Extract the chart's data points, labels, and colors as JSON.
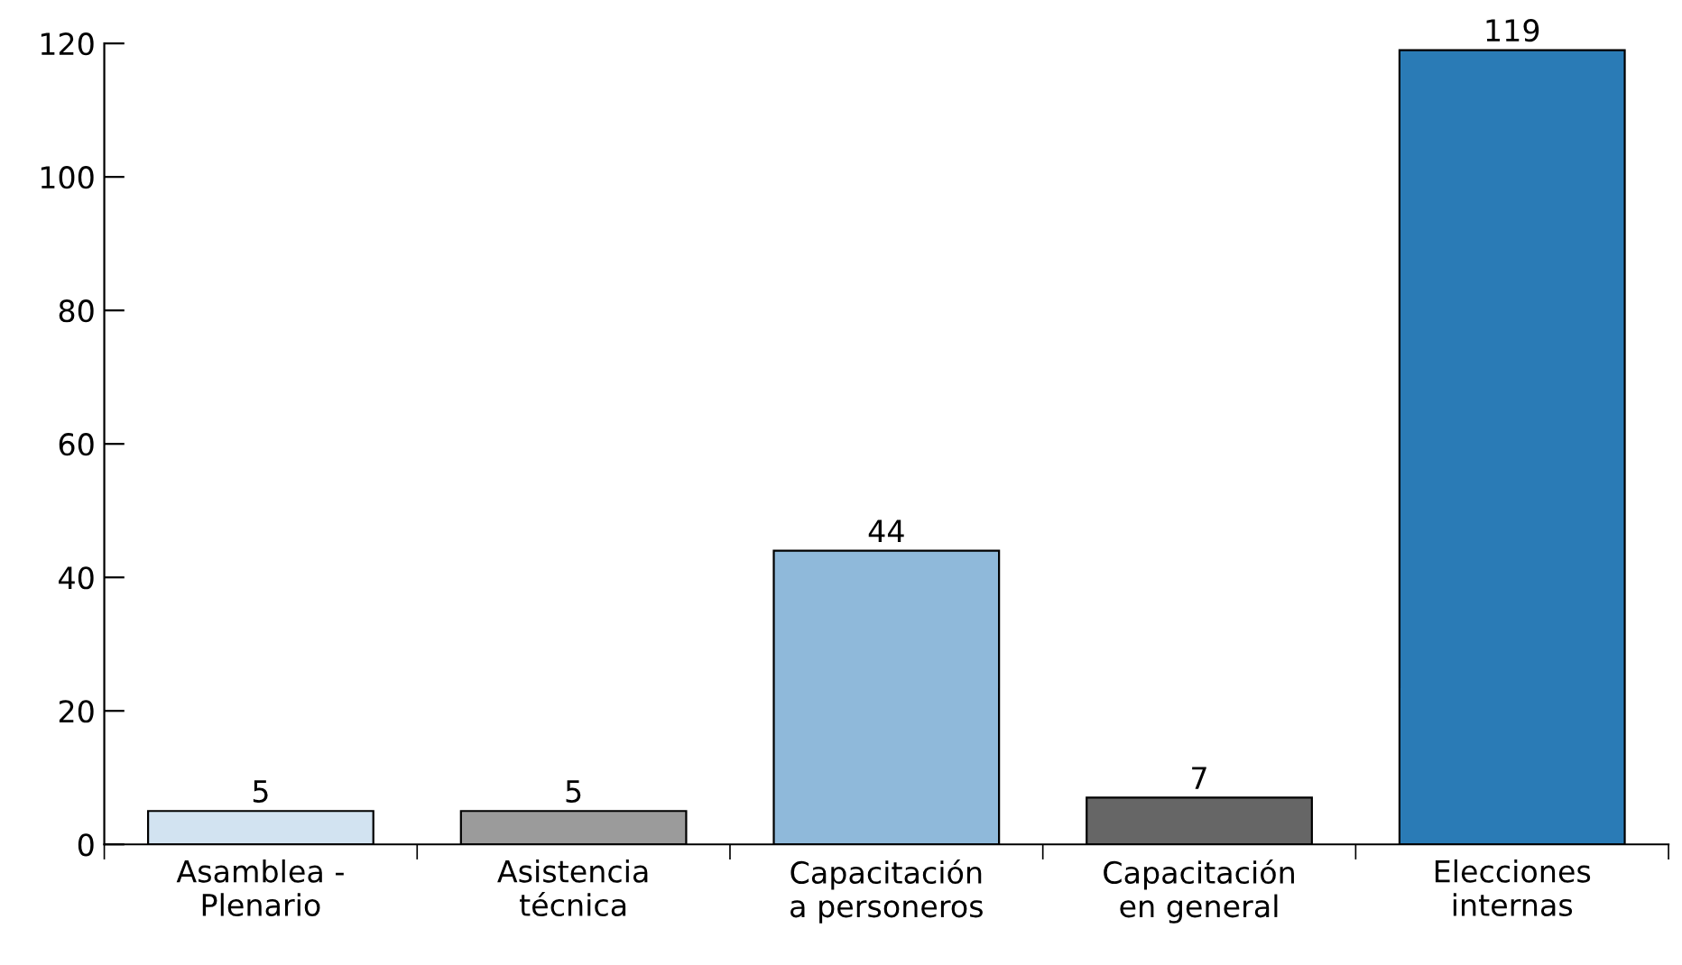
{
  "chart_data": {
    "type": "bar",
    "categories": [
      "Asamblea -\nPlenario",
      "Asistencia\ntécnica",
      "Capacitación\na personeros",
      "Capacitación\nen general",
      "Elecciones\ninternas"
    ],
    "values": [
      5,
      5,
      44,
      7,
      119
    ],
    "colors": [
      "#d2e3f1",
      "#9b9b9b",
      "#8fb9da",
      "#666666",
      "#2a7bb6"
    ],
    "ylim": [
      0,
      120
    ],
    "yticks": [
      0,
      20,
      40,
      60,
      80,
      100,
      120
    ],
    "data_labels": true,
    "grid": false,
    "legend": false
  }
}
